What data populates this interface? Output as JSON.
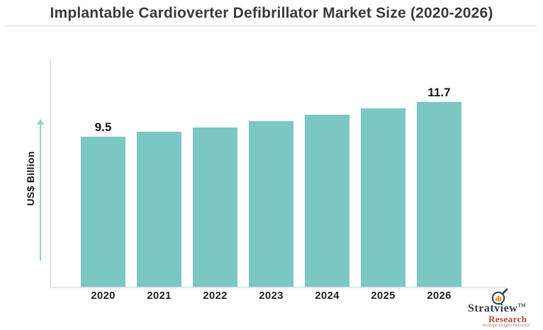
{
  "title": "Implantable Cardioverter Defibrillator Market Size (2020-2026)",
  "chart_data": {
    "type": "bar",
    "categories": [
      "2020",
      "2021",
      "2022",
      "2023",
      "2024",
      "2025",
      "2026"
    ],
    "values": [
      9.5,
      9.8,
      10.1,
      10.5,
      10.9,
      11.3,
      11.7
    ],
    "point_labels": [
      "9.5",
      "",
      "",
      "",
      "",
      "",
      "11.7"
    ],
    "title": "Implantable Cardioverter Defibrillator Market Size (2020-2026)",
    "xlabel": "",
    "ylabel": "US$ Billion",
    "ylim": [
      0,
      14.4
    ],
    "grid": false,
    "legend": false,
    "bar_color": "#7ac7c4"
  },
  "branding": {
    "name": "Stratview",
    "trademark": "TM",
    "sub": "Research",
    "tagline": "Strategic Insights Delivered"
  },
  "icons": {
    "y_axis_arrow": "up-arrow",
    "logo_magnifier": "magnifier-with-bar-chart"
  },
  "colors": {
    "bar": "#7ac7c4",
    "arrow": "#8fd0cc",
    "axis": "#dfe9e9",
    "title_text": "#3a3a3a",
    "label_text": "#111111",
    "separator": "#dcdcdc",
    "logo_name": "#333d47",
    "logo_sub": "#c63d2f",
    "logo_accent": "#e8a33d"
  }
}
